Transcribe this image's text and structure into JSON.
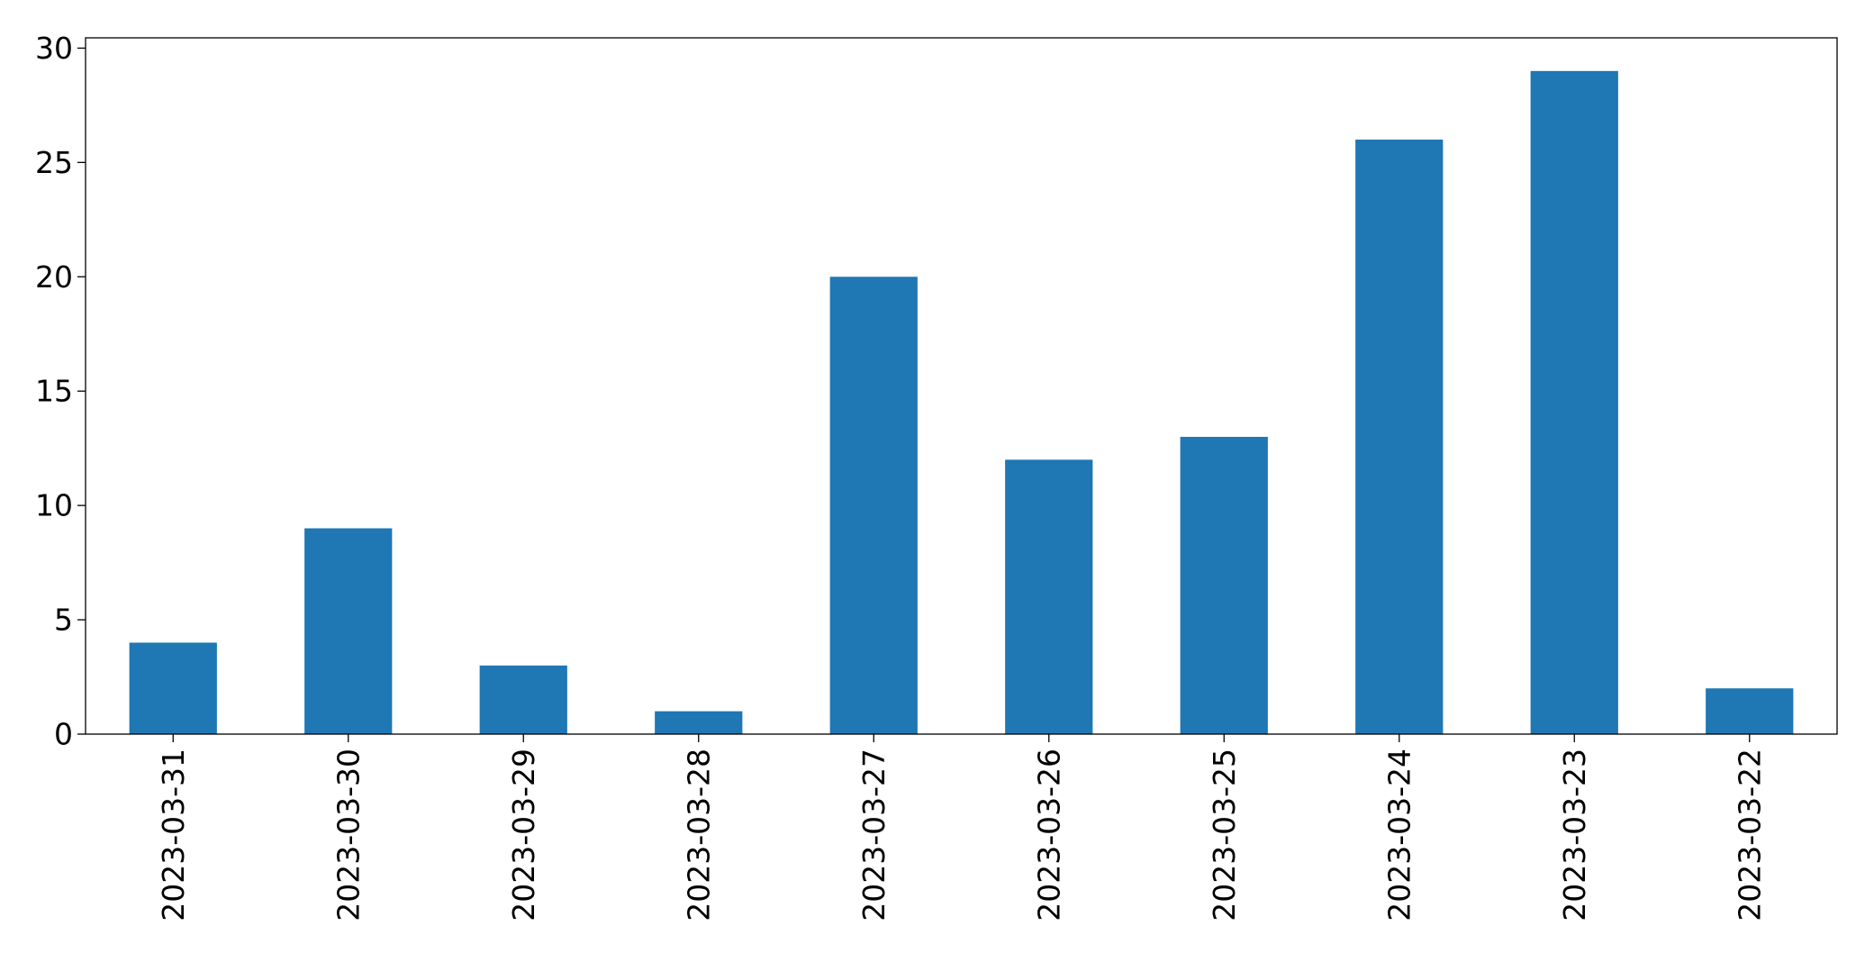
{
  "chart_data": {
    "type": "bar",
    "title": "",
    "xlabel": "",
    "ylabel": "",
    "categories": [
      "2023-03-31",
      "2023-03-30",
      "2023-03-29",
      "2023-03-28",
      "2023-03-27",
      "2023-03-26",
      "2023-03-25",
      "2023-03-24",
      "2023-03-23",
      "2023-03-22"
    ],
    "values": [
      4,
      9,
      3,
      1,
      20,
      12,
      13,
      26,
      29,
      2
    ],
    "ylim": [
      0,
      30.45
    ],
    "yticks": [
      0,
      5,
      10,
      15,
      20,
      25,
      30
    ],
    "grid": false,
    "legend": "none",
    "bar_color": "#1f77b4"
  }
}
